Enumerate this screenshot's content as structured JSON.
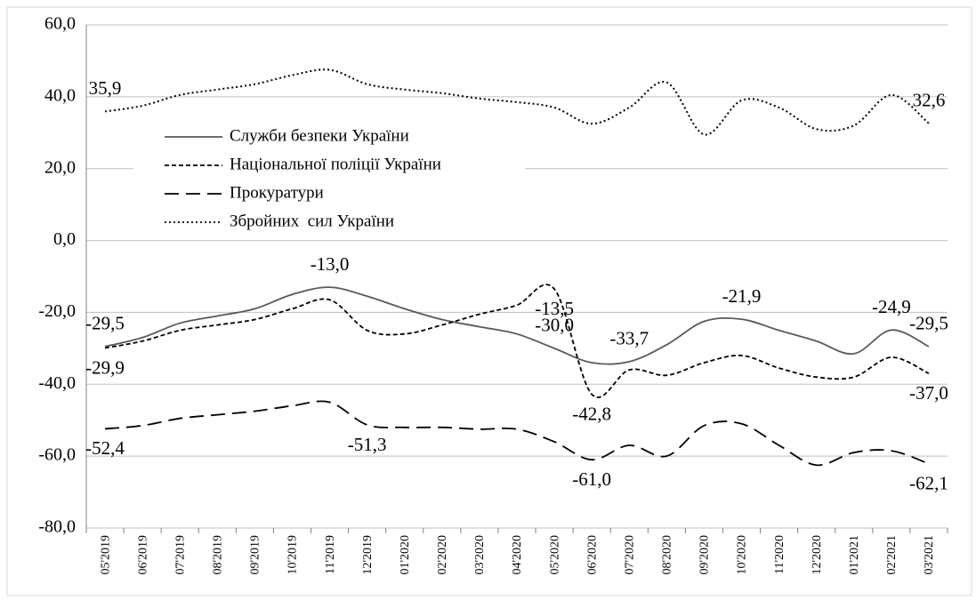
{
  "chart_data": {
    "type": "line",
    "categories": [
      "05'2019",
      "06'2019",
      "07'2019",
      "08'2019",
      "09'2019",
      "10'2019",
      "11'2019",
      "12'2019",
      "01'2020",
      "02'2020",
      "03'2020",
      "04'2020",
      "05'2020",
      "06'2020",
      "07'2020",
      "08'2020",
      "09'2020",
      "10'2020",
      "11'2020",
      "12'2020",
      "01'2021",
      "02'2021",
      "03'2021"
    ],
    "series": [
      {
        "name": "Служби безпеки України",
        "color": "#595959",
        "dash": "solid",
        "values": [
          -29.5,
          -27,
          -23,
          -21,
          -19,
          -15,
          -13.0,
          -15.5,
          -19,
          -22,
          -24,
          -26,
          -30.0,
          -34,
          -33.7,
          -29,
          -22.5,
          -21.9,
          -25,
          -28,
          -31.5,
          -24.9,
          -29.5
        ],
        "value_labels": [
          "-29,5",
          null,
          null,
          null,
          null,
          null,
          "-13,0",
          null,
          null,
          null,
          null,
          null,
          "-30,0",
          null,
          "-33,7",
          null,
          null,
          "-21,9",
          null,
          null,
          null,
          "-24,9",
          "-29,5"
        ]
      },
      {
        "name": "Національної поліції України",
        "color": "#000000",
        "dash": "short",
        "values": [
          -29.9,
          -28,
          -25,
          -23.5,
          -22,
          -19,
          -16.5,
          -25,
          -26,
          -23.5,
          -20.5,
          -18,
          -13.5,
          -42.8,
          -36,
          -37.5,
          -34,
          -32,
          -35.5,
          -38,
          -38,
          -32.5,
          -37.0
        ],
        "value_labels": [
          "-29,9",
          null,
          null,
          null,
          null,
          null,
          null,
          null,
          null,
          null,
          null,
          null,
          "-13,5",
          "-42,8",
          null,
          null,
          null,
          null,
          null,
          null,
          null,
          null,
          "-37,0"
        ]
      },
      {
        "name": "Прокуратури",
        "color": "#000000",
        "dash": "long",
        "values": [
          -52.4,
          -51.5,
          -49.5,
          -48.5,
          -47.5,
          -46,
          -45,
          -51.3,
          -52,
          -52,
          -52.5,
          -52.5,
          -56,
          -61.0,
          -57,
          -60,
          -51.5,
          -51,
          -57,
          -62.5,
          -59,
          -58.5,
          -62.1
        ],
        "value_labels": [
          "-52,4",
          null,
          null,
          null,
          null,
          null,
          null,
          "-51,3",
          null,
          null,
          null,
          null,
          null,
          "-61,0",
          null,
          null,
          null,
          null,
          null,
          null,
          null,
          null,
          "-62,1"
        ]
      },
      {
        "name": "Збройних  сил України",
        "color": "#000000",
        "dash": "dot",
        "values": [
          35.9,
          37.5,
          40.5,
          42,
          43.5,
          46,
          47.5,
          43.5,
          42,
          41,
          39.5,
          38.5,
          37,
          32.5,
          37,
          44,
          29.5,
          39,
          37,
          31,
          32,
          40.5,
          32.6
        ],
        "value_labels": [
          "35,9",
          null,
          null,
          null,
          null,
          null,
          null,
          null,
          null,
          null,
          null,
          null,
          null,
          null,
          null,
          null,
          null,
          null,
          null,
          null,
          null,
          null,
          "32,6"
        ]
      }
    ],
    "ylim": [
      -80,
      60
    ],
    "yticks": [
      {
        "value": -80,
        "label": "-80,0"
      },
      {
        "value": -60,
        "label": "-60,0"
      },
      {
        "value": -40,
        "label": "-40,0"
      },
      {
        "value": -20,
        "label": "-20,0"
      },
      {
        "value": 0,
        "label": "0,0"
      },
      {
        "value": 20,
        "label": "20,0"
      },
      {
        "value": 40,
        "label": "40,0"
      },
      {
        "value": 60,
        "label": "60,0"
      }
    ],
    "grid": true
  }
}
